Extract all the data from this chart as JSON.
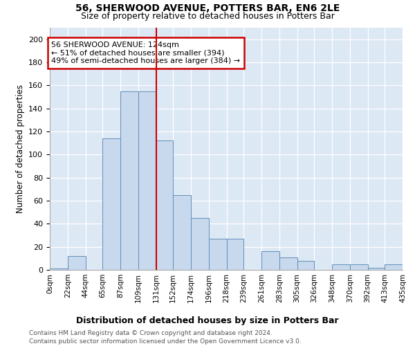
{
  "title": "56, SHERWOOD AVENUE, POTTERS BAR, EN6 2LE",
  "subtitle": "Size of property relative to detached houses in Potters Bar",
  "xlabel": "Distribution of detached houses by size in Potters Bar",
  "ylabel": "Number of detached properties",
  "bar_color": "#c8d8ed",
  "bar_edge_color": "#6090b8",
  "axes_bg_color": "#dde8f5",
  "fig_bg_color": "#ffffff",
  "grid_color": "#ffffff",
  "vline_x": 131,
  "vline_color": "#cc0000",
  "bin_edges": [
    0,
    22,
    44,
    65,
    87,
    109,
    131,
    152,
    174,
    196,
    218,
    239,
    261,
    283,
    305,
    326,
    348,
    370,
    392,
    413,
    435
  ],
  "bin_labels": [
    "0sqm",
    "22sqm",
    "44sqm",
    "65sqm",
    "87sqm",
    "109sqm",
    "131sqm",
    "152sqm",
    "174sqm",
    "196sqm",
    "218sqm",
    "239sqm",
    "261sqm",
    "283sqm",
    "305sqm",
    "326sqm",
    "348sqm",
    "370sqm",
    "392sqm",
    "413sqm",
    "435sqm"
  ],
  "counts": [
    1,
    12,
    0,
    114,
    155,
    155,
    112,
    65,
    45,
    27,
    27,
    0,
    16,
    11,
    8,
    0,
    5,
    5,
    2,
    5
  ],
  "ylim": [
    0,
    210
  ],
  "yticks": [
    0,
    20,
    40,
    60,
    80,
    100,
    120,
    140,
    160,
    180,
    200
  ],
  "annotation_title": "56 SHERWOOD AVENUE: 124sqm",
  "annotation_line1": "← 51% of detached houses are smaller (394)",
  "annotation_line2": "49% of semi-detached houses are larger (384) →",
  "annotation_box_facecolor": "#ffffff",
  "annotation_box_edgecolor": "#cc0000",
  "footer_line1": "Contains HM Land Registry data © Crown copyright and database right 2024.",
  "footer_line2": "Contains public sector information licensed under the Open Government Licence v3.0."
}
